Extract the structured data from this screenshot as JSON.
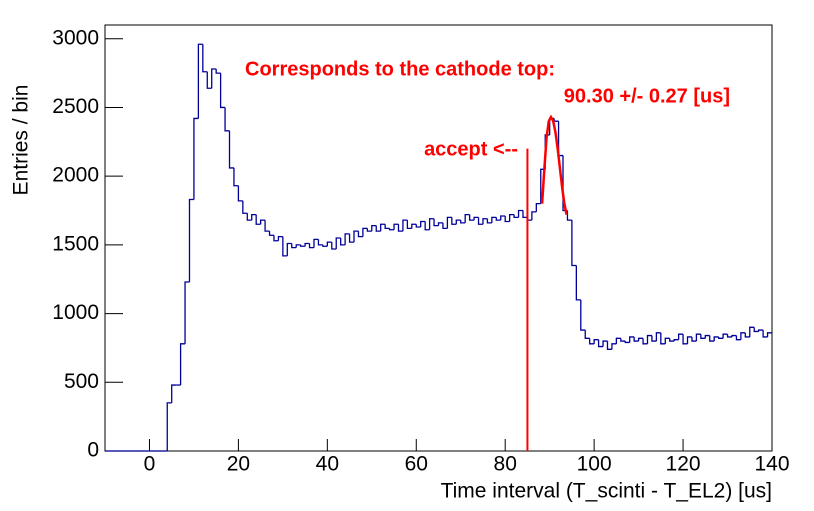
{
  "chart_data": {
    "type": "histogram",
    "x_label": "Time interval (T_scinti - T_EL2) [us]",
    "y_label": "Entries / bin",
    "color": "#000099",
    "bins": [
      -10,
      -9,
      -8,
      -7,
      -6,
      -5,
      -4,
      -3,
      -2,
      -1,
      0,
      1,
      2,
      3,
      4,
      5,
      6,
      7,
      8,
      9,
      10,
      11,
      12,
      13,
      14,
      15,
      16,
      17,
      18,
      19,
      20,
      21,
      22,
      23,
      24,
      25,
      26,
      27,
      28,
      29,
      30,
      31,
      32,
      33,
      34,
      35,
      36,
      37,
      38,
      39,
      40,
      41,
      42,
      43,
      44,
      45,
      46,
      47,
      48,
      49,
      50,
      51,
      52,
      53,
      54,
      55,
      56,
      57,
      58,
      59,
      60,
      61,
      62,
      63,
      64,
      65,
      66,
      67,
      68,
      69,
      70,
      71,
      72,
      73,
      74,
      75,
      76,
      77,
      78,
      79,
      80,
      81,
      82,
      83,
      84,
      85,
      86,
      87,
      88,
      89,
      90,
      91,
      92,
      93,
      94,
      95,
      96,
      97,
      98,
      99,
      100,
      101,
      102,
      103,
      104,
      105,
      106,
      107,
      108,
      109,
      110,
      111,
      112,
      113,
      114,
      115,
      116,
      117,
      118,
      119,
      120,
      121,
      122,
      123,
      124,
      125,
      126,
      127,
      128,
      129,
      130,
      131,
      132,
      133,
      134,
      135,
      136,
      137,
      138,
      139,
      140
    ],
    "values": [
      0,
      0,
      0,
      0,
      0,
      0,
      0,
      0,
      0,
      0,
      0,
      0,
      0,
      0,
      350,
      480,
      480,
      780,
      1230,
      1830,
      2420,
      2960,
      2760,
      2640,
      2780,
      2750,
      2500,
      2330,
      2060,
      1930,
      1820,
      1730,
      1680,
      1720,
      1650,
      1680,
      1600,
      1570,
      1530,
      1560,
      1420,
      1510,
      1480,
      1500,
      1490,
      1510,
      1480,
      1540,
      1500,
      1490,
      1520,
      1470,
      1550,
      1500,
      1580,
      1520,
      1600,
      1560,
      1620,
      1600,
      1640,
      1600,
      1650,
      1620,
      1610,
      1650,
      1600,
      1680,
      1620,
      1650,
      1630,
      1670,
      1610,
      1690,
      1640,
      1660,
      1620,
      1700,
      1650,
      1680,
      1660,
      1720,
      1680,
      1700,
      1650,
      1690,
      1660,
      1700,
      1680,
      1710,
      1670,
      1720,
      1700,
      1750,
      1700,
      1680,
      1740,
      1800,
      2050,
      2300,
      2420,
      2400,
      2150,
      1750,
      1680,
      1350,
      1100,
      880,
      820,
      780,
      810,
      760,
      800,
      740,
      780,
      820,
      800,
      790,
      830,
      800,
      820,
      780,
      840,
      800,
      860,
      780,
      820,
      800,
      810,
      850,
      780,
      830,
      800,
      850,
      820,
      840,
      800,
      830,
      820,
      850,
      830,
      840,
      810,
      860,
      830,
      900,
      870,
      880,
      830,
      860
    ],
    "xlim": [
      -10,
      140
    ],
    "xticks": [
      0,
      20,
      40,
      60,
      80,
      100,
      120,
      140
    ],
    "ylim": [
      0,
      3100
    ],
    "yticks": [
      0,
      500,
      1000,
      1500,
      2000,
      2500,
      3000
    ],
    "fit": {
      "color": "#ff0000",
      "x": [
        88.3,
        88.8,
        89.3,
        89.8,
        90.3,
        90.8,
        91.3,
        91.8,
        92.3,
        92.8,
        93.3,
        93.8
      ],
      "values": [
        1800,
        2050,
        2280,
        2400,
        2430,
        2400,
        2320,
        2200,
        2060,
        1920,
        1800,
        1720
      ]
    },
    "cut_line": {
      "x": 85,
      "ymax": 2200,
      "color": "#ff0000"
    },
    "annotations": [
      "Corresponds to the cathode top:",
      "90.30 +/- 0.27 [us]",
      "accept <--"
    ]
  }
}
